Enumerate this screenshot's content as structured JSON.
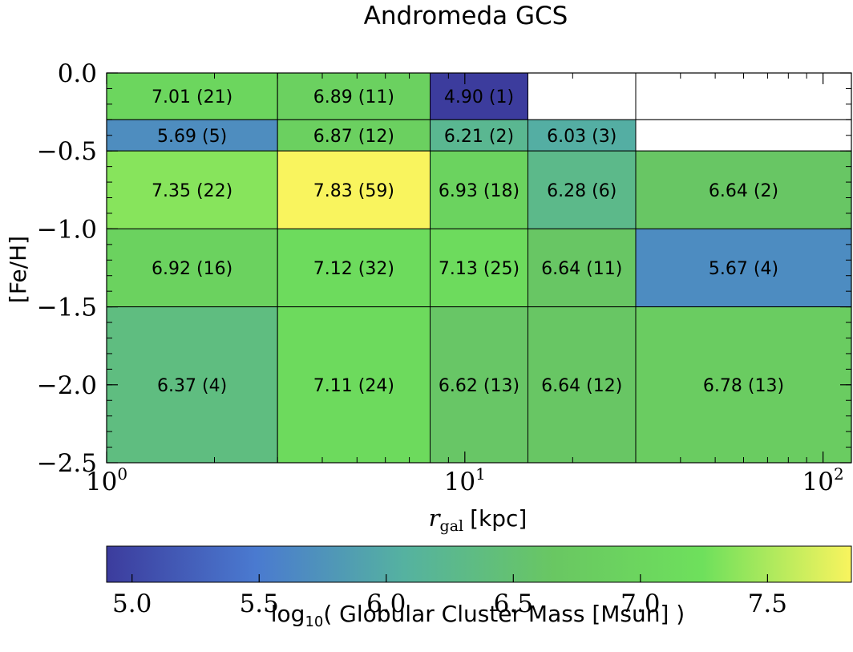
{
  "chart_data": {
    "type": "heatmap",
    "title": "Andromeda GCS",
    "xlabel_symbol": "r",
    "xlabel_subscript": "gal",
    "xlabel_unit": "[kpc]",
    "ylabel": "[Fe/H]",
    "x_scale": "log",
    "xlim": [
      1,
      120
    ],
    "ylim": [
      -2.5,
      0.0
    ],
    "x_ticks": [
      {
        "value": 1,
        "base": "10",
        "exp": "0"
      },
      {
        "value": 10,
        "base": "10",
        "exp": "1"
      },
      {
        "value": 100,
        "base": "10",
        "exp": "2"
      }
    ],
    "y_ticks": [
      {
        "value": 0.0,
        "label": "0.0"
      },
      {
        "value": -0.5,
        "label": "−0.5"
      },
      {
        "value": -1.0,
        "label": "−1.0"
      },
      {
        "value": -1.5,
        "label": "−1.5"
      },
      {
        "value": -2.0,
        "label": "−2.0"
      },
      {
        "value": -2.5,
        "label": "−2.5"
      }
    ],
    "x_bin_edges": [
      1,
      3,
      8,
      15,
      30,
      120
    ],
    "cells": [
      {
        "x0": 1,
        "x1": 3,
        "y0": -0.3,
        "y1": 0.0,
        "value": 7.01,
        "count": 21,
        "label": "7.01 (21)"
      },
      {
        "x0": 3,
        "x1": 8,
        "y0": -0.3,
        "y1": 0.0,
        "value": 6.89,
        "count": 11,
        "label": "6.89 (11)"
      },
      {
        "x0": 8,
        "x1": 15,
        "y0": -0.3,
        "y1": 0.0,
        "value": 4.9,
        "count": 1,
        "label": "4.90 (1)"
      },
      {
        "x0": 15,
        "x1": 30,
        "y0": -0.3,
        "y1": 0.0,
        "value": null,
        "count": 0,
        "label": ""
      },
      {
        "x0": 30,
        "x1": 120,
        "y0": -0.3,
        "y1": 0.0,
        "value": null,
        "count": 0,
        "label": ""
      },
      {
        "x0": 1,
        "x1": 3,
        "y0": -0.5,
        "y1": -0.3,
        "value": 5.69,
        "count": 5,
        "label": "5.69 (5)"
      },
      {
        "x0": 3,
        "x1": 8,
        "y0": -0.5,
        "y1": -0.3,
        "value": 6.87,
        "count": 12,
        "label": "6.87 (12)"
      },
      {
        "x0": 8,
        "x1": 15,
        "y0": -0.5,
        "y1": -0.3,
        "value": 6.21,
        "count": 2,
        "label": "6.21 (2)"
      },
      {
        "x0": 15,
        "x1": 30,
        "y0": -0.5,
        "y1": -0.3,
        "value": 6.03,
        "count": 3,
        "label": "6.03 (3)"
      },
      {
        "x0": 30,
        "x1": 120,
        "y0": -0.5,
        "y1": -0.3,
        "value": null,
        "count": 0,
        "label": ""
      },
      {
        "x0": 1,
        "x1": 3,
        "y0": -1.0,
        "y1": -0.5,
        "value": 7.35,
        "count": 22,
        "label": "7.35 (22)"
      },
      {
        "x0": 3,
        "x1": 8,
        "y0": -1.0,
        "y1": -0.5,
        "value": 7.83,
        "count": 59,
        "label": "7.83 (59)"
      },
      {
        "x0": 8,
        "x1": 15,
        "y0": -1.0,
        "y1": -0.5,
        "value": 6.93,
        "count": 18,
        "label": "6.93 (18)"
      },
      {
        "x0": 15,
        "x1": 30,
        "y0": -1.0,
        "y1": -0.5,
        "value": 6.28,
        "count": 6,
        "label": "6.28 (6)"
      },
      {
        "x0": 30,
        "x1": 120,
        "y0": -1.0,
        "y1": -0.5,
        "value": 6.64,
        "count": 2,
        "label": "6.64 (2)"
      },
      {
        "x0": 1,
        "x1": 3,
        "y0": -1.5,
        "y1": -1.0,
        "value": 6.92,
        "count": 16,
        "label": "6.92 (16)"
      },
      {
        "x0": 3,
        "x1": 8,
        "y0": -1.5,
        "y1": -1.0,
        "value": 7.12,
        "count": 32,
        "label": "7.12 (32)"
      },
      {
        "x0": 8,
        "x1": 15,
        "y0": -1.5,
        "y1": -1.0,
        "value": 7.13,
        "count": 25,
        "label": "7.13 (25)"
      },
      {
        "x0": 15,
        "x1": 30,
        "y0": -1.5,
        "y1": -1.0,
        "value": 6.64,
        "count": 11,
        "label": "6.64 (11)"
      },
      {
        "x0": 30,
        "x1": 120,
        "y0": -1.5,
        "y1": -1.0,
        "value": 5.67,
        "count": 4,
        "label": "5.67 (4)"
      },
      {
        "x0": 1,
        "x1": 3,
        "y0": -2.5,
        "y1": -1.5,
        "value": 6.37,
        "count": 4,
        "label": "6.37 (4)"
      },
      {
        "x0": 3,
        "x1": 8,
        "y0": -2.5,
        "y1": -1.5,
        "value": 7.11,
        "count": 24,
        "label": "7.11 (24)"
      },
      {
        "x0": 8,
        "x1": 15,
        "y0": -2.5,
        "y1": -1.5,
        "value": 6.62,
        "count": 13,
        "label": "6.62 (13)"
      },
      {
        "x0": 15,
        "x1": 30,
        "y0": -2.5,
        "y1": -1.5,
        "value": 6.64,
        "count": 12,
        "label": "6.64 (12)"
      },
      {
        "x0": 30,
        "x1": 120,
        "y0": -2.5,
        "y1": -1.5,
        "value": 6.78,
        "count": 13,
        "label": "6.78 (13)"
      }
    ],
    "colorbar": {
      "range": [
        4.9,
        7.83
      ],
      "ticks": [
        {
          "value": 5.0,
          "label": "5.0"
        },
        {
          "value": 5.5,
          "label": "5.5"
        },
        {
          "value": 6.0,
          "label": "6.0"
        },
        {
          "value": 6.5,
          "label": "6.5"
        },
        {
          "value": 7.0,
          "label": "7.0"
        },
        {
          "value": 7.5,
          "label": "7.5"
        }
      ],
      "label_prefix": "log",
      "label_subscript": "10",
      "label_text": "( Globular Cluster Mass [Msun] )",
      "colors": [
        "#3c3c9d",
        "#4a7ad0",
        "#55b2a0",
        "#69c762",
        "#6ee05c",
        "#f9f45e"
      ]
    }
  }
}
